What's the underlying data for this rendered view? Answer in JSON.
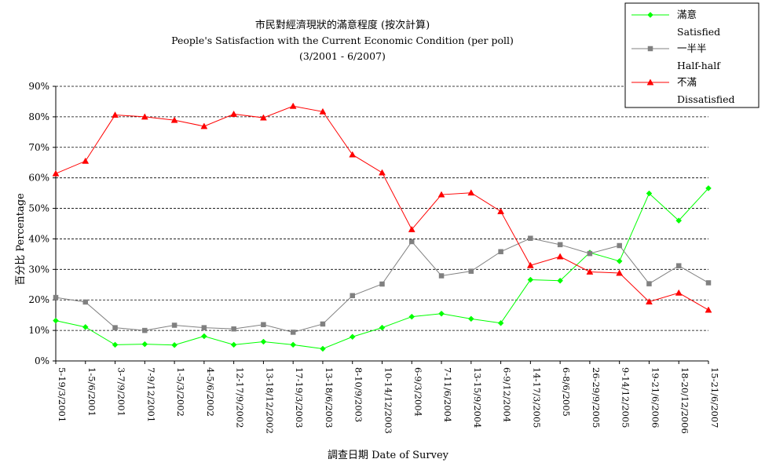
{
  "chart_data": {
    "type": "line",
    "title": "市民對經濟現狀的滿意程度 (按次計算)",
    "subtitle": "People's Satisfaction with the Current Economic Condition  (per poll)",
    "subtitle2": "(3/2001 - 6/2007)",
    "xlabel": "調查日期 Date of Survey",
    "ylabel": "百分比 Percentage",
    "ylim": [
      0,
      90
    ],
    "yticks": [
      "0%",
      "10%",
      "20%",
      "30%",
      "40%",
      "50%",
      "60%",
      "70%",
      "80%",
      "90%"
    ],
    "ytick_values": [
      0,
      10,
      20,
      30,
      40,
      50,
      60,
      70,
      80,
      90
    ],
    "grid": true,
    "legend": "top-right",
    "categories": [
      "5-19/3/2001",
      "1-5/6/2001",
      "3-7/9/2001",
      "7-9/12/2001",
      "1-5/3/2002",
      "4-5/6/2002",
      "12-17/9/2002",
      "13-18/12/2002",
      "17-19/3/2003",
      "13-18/6/2003",
      "8-10/9/2003",
      "10-14/12/2003",
      "6-9/3/2004",
      "7-11/6/2004",
      "13-15/9/2004",
      "6-9/12/2004",
      "14-17/3/2005",
      "6-8/6/2005",
      "26-29/9/2005",
      "9-14/12/2005",
      "19-21/6/2006",
      "18-20/12/2006",
      "15-21/6/2007"
    ],
    "series": [
      {
        "name": "滿意",
        "name_en": "Satisfied",
        "color": "#00ff00",
        "marker": "diamond",
        "values": [
          13.2,
          11.1,
          5.3,
          5.5,
          5.2,
          8.1,
          5.3,
          6.3,
          5.3,
          4.0,
          7.9,
          10.9,
          14.5,
          15.5,
          13.8,
          12.4,
          26.6,
          26.3,
          35.5,
          32.7,
          54.9,
          46.0,
          56.6
        ]
      },
      {
        "name": "一半半",
        "name_en": "Half-half",
        "color": "#808080",
        "marker": "square",
        "values": [
          20.8,
          19.3,
          10.9,
          10.0,
          11.7,
          10.9,
          10.5,
          11.9,
          9.4,
          12.1,
          21.4,
          25.2,
          39.1,
          27.9,
          29.4,
          35.8,
          40.2,
          38.1,
          35.2,
          37.8,
          25.3,
          31.2,
          25.6
        ]
      },
      {
        "name": "不滿",
        "name_en": "Dissatisfied",
        "color": "#ff0000",
        "marker": "triangle",
        "values": [
          61.4,
          65.5,
          80.6,
          80.0,
          78.9,
          76.9,
          80.9,
          79.7,
          83.5,
          81.7,
          67.6,
          61.7,
          43.1,
          54.5,
          55.1,
          49.0,
          31.3,
          34.2,
          29.2,
          28.8,
          19.4,
          22.3,
          16.7
        ]
      }
    ]
  }
}
